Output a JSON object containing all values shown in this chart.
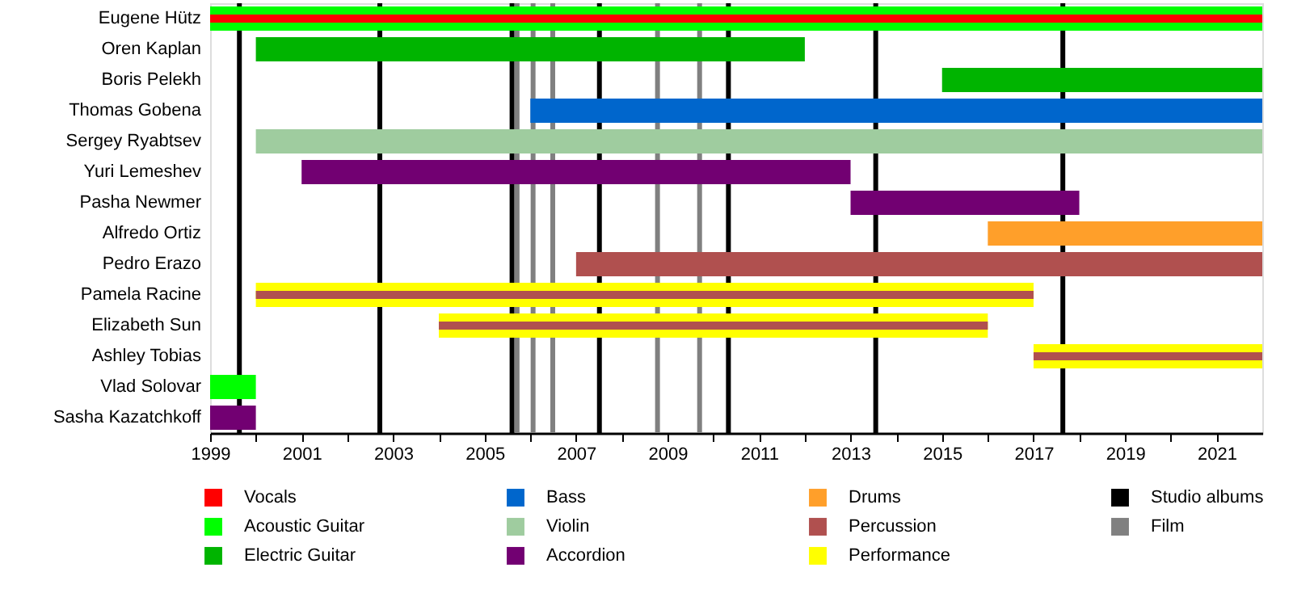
{
  "chart_data": {
    "type": "bar",
    "orientation": "horizontal",
    "legend": "bottom",
    "grid": false,
    "categories": [
      "Eugene Hütz",
      "Oren Kaplan",
      "Boris Pelekh",
      "Thomas Gobena",
      "Sergey Ryabtsev",
      "Yuri Lemeshev",
      "Pasha Newmer",
      "Alfredo Ortiz",
      "Pedro Erazo",
      "Pamela Racine",
      "Elizabeth Sun",
      "Ashley Tobias",
      "Vlad Solovar",
      "Sasha Kazatchkoff"
    ],
    "xlim": [
      1999,
      2022
    ],
    "xticks": [
      1999,
      {
        "value": 2000,
        "label": null
      },
      2001,
      {
        "value": 2002,
        "label": null
      },
      2003,
      {
        "value": 2004,
        "label": null
      },
      2005,
      {
        "value": 2006,
        "label": null
      },
      2007,
      {
        "value": 2008,
        "label": null
      },
      2009,
      {
        "value": 2010,
        "label": null
      },
      2011,
      {
        "value": 2012,
        "label": null
      },
      2013,
      {
        "value": 2014,
        "label": null
      },
      2015,
      {
        "value": 2016,
        "label": null
      },
      2017,
      {
        "value": 2018,
        "label": null
      },
      2019,
      {
        "value": 2020,
        "label": null
      },
      2021
    ],
    "series": [
      {
        "name": "Vocals",
        "color": "#ff0000",
        "base": [
          1999,
          null,
          null,
          null,
          null,
          null,
          null,
          null,
          null,
          null,
          null,
          null,
          null,
          null
        ],
        "values": [
          23,
          null,
          null,
          null,
          null,
          null,
          null,
          null,
          null,
          null,
          null,
          null,
          null,
          null
        ]
      },
      {
        "name": "Acoustic Guitar",
        "color": "#00ff00",
        "base": [
          1999,
          null,
          null,
          null,
          null,
          null,
          null,
          null,
          null,
          null,
          null,
          null,
          1999,
          null
        ],
        "values": [
          23,
          null,
          null,
          null,
          null,
          null,
          null,
          null,
          null,
          null,
          null,
          null,
          1,
          null
        ]
      },
      {
        "name": "Electric Guitar",
        "color": "#00b400",
        "base": [
          null,
          2000,
          2015,
          null,
          null,
          null,
          null,
          null,
          null,
          null,
          null,
          null,
          null,
          null
        ],
        "values": [
          null,
          12,
          7,
          null,
          null,
          null,
          null,
          null,
          null,
          null,
          null,
          null,
          null,
          null
        ]
      },
      {
        "name": "Bass",
        "color": "#0066cc",
        "base": [
          null,
          null,
          null,
          2006,
          null,
          null,
          null,
          null,
          null,
          null,
          null,
          null,
          null,
          null
        ],
        "values": [
          null,
          null,
          null,
          16,
          null,
          null,
          null,
          null,
          null,
          null,
          null,
          null,
          null,
          null
        ]
      },
      {
        "name": "Violin",
        "color": "#9fcc9f",
        "base": [
          null,
          null,
          null,
          null,
          2000,
          null,
          null,
          null,
          null,
          null,
          null,
          null,
          null,
          null
        ],
        "values": [
          null,
          null,
          null,
          null,
          22,
          null,
          null,
          null,
          null,
          null,
          null,
          null,
          null,
          null
        ]
      },
      {
        "name": "Accordion",
        "color": "#720072",
        "base": [
          null,
          null,
          null,
          null,
          null,
          2001,
          2013,
          null,
          null,
          null,
          null,
          null,
          null,
          1999
        ],
        "values": [
          null,
          null,
          null,
          null,
          null,
          12,
          5,
          null,
          null,
          null,
          null,
          null,
          null,
          1
        ]
      },
      {
        "name": "Drums",
        "color": "#ff9f2a",
        "base": [
          null,
          null,
          null,
          null,
          null,
          null,
          null,
          2016,
          null,
          null,
          null,
          null,
          null,
          null
        ],
        "values": [
          null,
          null,
          null,
          null,
          null,
          null,
          null,
          6,
          null,
          null,
          null,
          null,
          null,
          null
        ]
      },
      {
        "name": "Percussion",
        "color": "#b0504f",
        "base": [
          null,
          null,
          null,
          null,
          null,
          null,
          null,
          null,
          2007,
          2000,
          2004,
          2017,
          null,
          null
        ],
        "values": [
          null,
          null,
          null,
          null,
          null,
          null,
          null,
          null,
          15,
          17,
          12,
          5,
          null,
          null
        ]
      },
      {
        "name": "Performance",
        "color": "#ffff00",
        "base": [
          null,
          null,
          null,
          null,
          null,
          null,
          null,
          null,
          null,
          2000,
          2004,
          2017,
          null,
          null
        ],
        "values": [
          null,
          null,
          null,
          null,
          null,
          null,
          null,
          null,
          null,
          17,
          12,
          5,
          null,
          null
        ]
      }
    ],
    "ref_lines": [
      {
        "axis": "x",
        "value": 1999.64,
        "label": "Studio albums",
        "color": "#000000"
      },
      {
        "axis": "x",
        "value": 2002.71,
        "color": "#000000"
      },
      {
        "axis": "x",
        "value": 2005.6,
        "color": "#000000"
      },
      {
        "axis": "x",
        "value": 2007.51,
        "color": "#000000"
      },
      {
        "axis": "x",
        "value": 2010.33,
        "color": "#000000"
      },
      {
        "axis": "x",
        "value": 2013.55,
        "color": "#000000"
      },
      {
        "axis": "x",
        "value": 2017.64,
        "color": "#000000"
      },
      {
        "axis": "x",
        "value": 2005.71,
        "label": "Film",
        "color": "#808080"
      },
      {
        "axis": "x",
        "value": 2006.06,
        "color": "#808080"
      },
      {
        "axis": "x",
        "value": 2006.49,
        "color": "#808080"
      },
      {
        "axis": "x",
        "value": 2008.78,
        "color": "#808080"
      },
      {
        "axis": "x",
        "value": 2009.7,
        "color": "#808080"
      }
    ]
  }
}
